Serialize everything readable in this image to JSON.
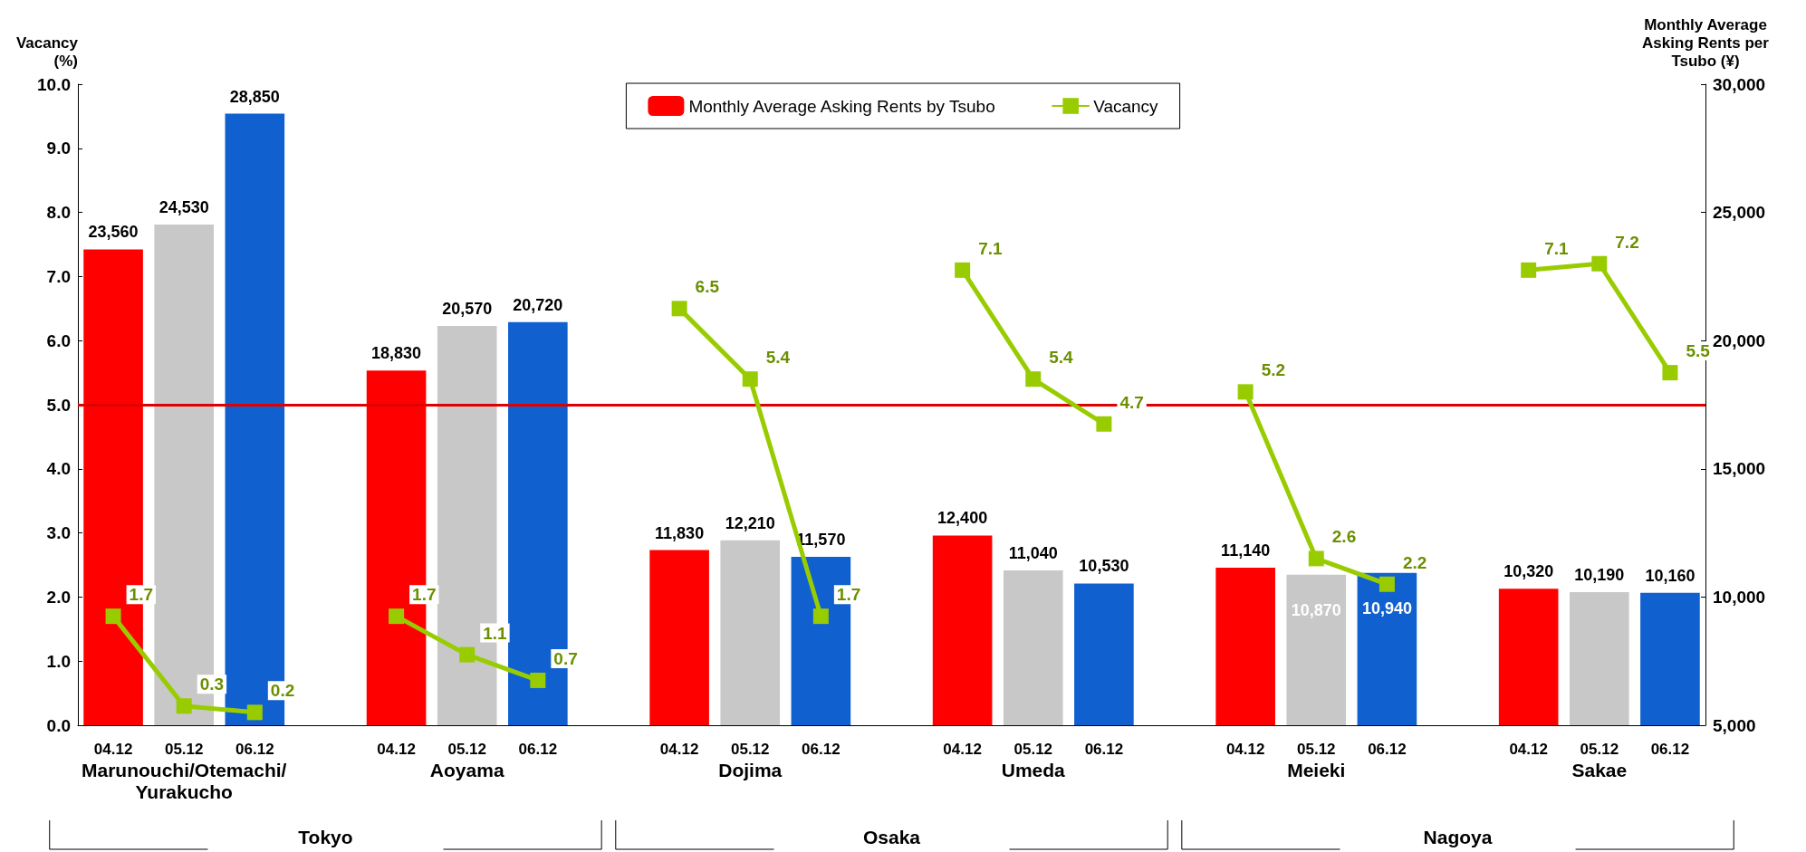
{
  "chart_data": {
    "type": "bar",
    "categories": [
      "04.12",
      "05.12",
      "06.12",
      null,
      "04.12",
      "05.12",
      "06.12",
      null,
      "04.12",
      "05.12",
      "06.12",
      null,
      "04.12",
      "05.12",
      "06.12",
      null,
      "04.12",
      "05.12",
      "06.12",
      null,
      "04.12",
      "05.12",
      "06.12"
    ],
    "ylabel": "Vacancy\n(%)",
    "y2label": "Monthly Average\nAsking Rents per\nTsubo (¥)",
    "annotations": [
      "Marunouchi/Otemachi/\nYurakucho",
      "Aoyama",
      "Dojima",
      "Umeda",
      "Meieki",
      "Sakae",
      "Tokyo",
      "Osaka",
      "Nagoya"
    ],
    "series": [
      {
        "name": "Monthly Average Asking Rents by Tsubo",
        "type": "bar",
        "axis": "y2",
        "value_labels": [
          "23,560",
          "24,530",
          "28,850",
          null,
          "18,830",
          "20,570",
          "20,720",
          null,
          "11,830",
          "12,210",
          "11,570",
          null,
          "12,400",
          "11,040",
          "10,530",
          null,
          "11,140",
          "10,870",
          "10,940",
          null,
          "10,320",
          "10,190",
          "10,160"
        ],
        "color": "#ff0000",
        "colors": [
          "#ff0000",
          "#c8c8c8",
          "#1060d0",
          null,
          "#ff0000",
          "#c8c8c8",
          "#1060d0",
          null,
          "#ff0000",
          "#c8c8c8",
          "#1060d0",
          null,
          "#ff0000",
          "#c8c8c8",
          "#1060d0",
          null,
          "#ff0000",
          "#c8c8c8",
          "#1060d0",
          null,
          "#ff0000",
          "#c8c8c8",
          "#1060d0"
        ],
        "values": [
          23560,
          24530,
          28850,
          null,
          18830,
          20570,
          20720,
          null,
          11830,
          12210,
          11570,
          null,
          12400,
          11040,
          10530,
          null,
          11140,
          10870,
          10940,
          null,
          10320,
          10190,
          10160
        ]
      },
      {
        "name": "Vacancy",
        "type": "line",
        "axis": "y",
        "color": "#99cc00",
        "values": [
          1.7,
          0.3,
          0.2,
          null,
          1.7,
          1.1,
          0.7,
          null,
          6.5,
          5.4,
          1.7,
          null,
          7.1,
          5.4,
          4.7,
          null,
          5.2,
          2.6,
          2.2,
          null,
          7.1,
          7.2,
          5.5
        ]
      }
    ],
    "ylim": [
      0,
      10
    ],
    "yticks": [
      {
        "value": 0,
        "label": "0.0"
      },
      {
        "value": 1,
        "label": "1.0"
      },
      {
        "value": 2,
        "label": "2.0"
      },
      {
        "value": 3,
        "label": "3.0"
      },
      {
        "value": 4,
        "label": "4.0"
      },
      {
        "value": 5,
        "label": "5.0"
      },
      {
        "value": 6,
        "label": "6.0"
      },
      {
        "value": 7,
        "label": "7.0"
      },
      {
        "value": 8,
        "label": "8.0"
      },
      {
        "value": 9,
        "label": "9.0"
      },
      {
        "value": 10,
        "label": "10.0"
      }
    ],
    "y2lim": [
      5000,
      30000
    ],
    "y2ticks": [
      {
        "value": 5000,
        "label": "5,000"
      },
      {
        "value": 10000,
        "label": "10,000"
      },
      {
        "value": 15000,
        "label": "15,000"
      },
      {
        "value": 20000,
        "label": "20,000"
      },
      {
        "value": 25000,
        "label": "25,000"
      },
      {
        "value": 30000,
        "label": "30,000"
      }
    ],
    "ref_lines": [
      {
        "axis": "y",
        "value": 5,
        "color": "#e00000"
      }
    ],
    "data_labels": true,
    "legend": "top",
    "marker": "square",
    "line_style": "solid",
    "grid": false
  }
}
